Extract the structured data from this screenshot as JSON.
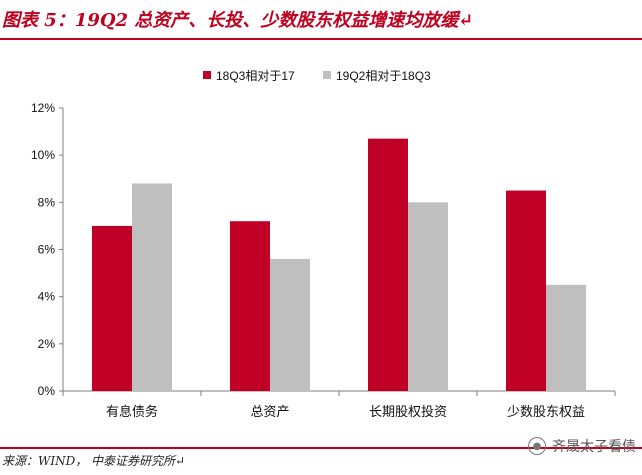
{
  "header": {
    "title": "图表 5：19Q2 总资产、长投、少数股东权益增速均放缓↵"
  },
  "footer": {
    "source": "来源：WIND， 中泰证券研究所↵",
    "watermark": "齐晟太子看债",
    "watermark_icon": "wechat-icon"
  },
  "chart_data": {
    "type": "bar",
    "categories": [
      "有息债务",
      "总资产",
      "长期股权投资",
      "少数股东权益"
    ],
    "series": [
      {
        "name": "18Q3相对于17",
        "values": [
          0.07,
          0.072,
          0.107,
          0.085
        ],
        "color": "#c00027"
      },
      {
        "name": "19Q2相对于18Q3",
        "values": [
          0.088,
          0.056,
          0.08,
          0.045
        ],
        "color": "#bfbfbf"
      }
    ],
    "yticks": [
      "0%",
      "2%",
      "4%",
      "6%",
      "8%",
      "10%",
      "12%"
    ],
    "ylim": [
      0,
      0.12
    ],
    "legend_position": "top-center",
    "grid": false
  }
}
